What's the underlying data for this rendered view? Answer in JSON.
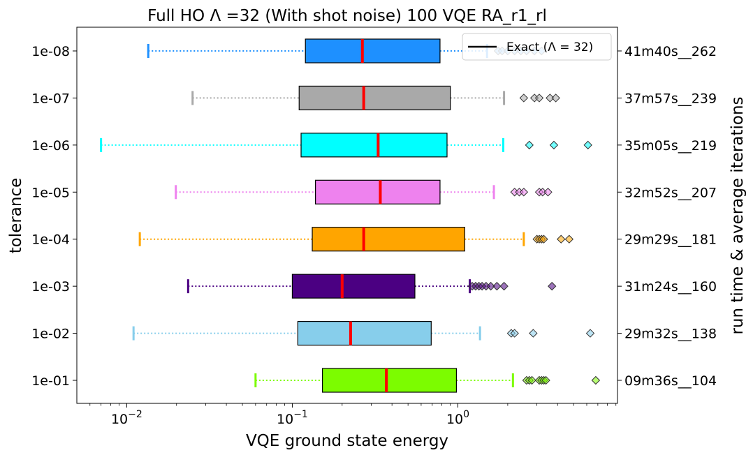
{
  "chart_data": {
    "type": "boxplot-horizontal",
    "title": "Full HO    Λ =32     (With shot noise)    100 VQE   RA_r1_rl",
    "xlabel": "VQE ground state energy",
    "ylabel": "tolerance",
    "ylabel_right": "run time & average iterations",
    "x_scale": "log",
    "xlim": [
      0.005,
      9.2
    ],
    "x_ticks": [
      {
        "value": 0.01,
        "base": "10",
        "exp": "−2"
      },
      {
        "value": 0.1,
        "base": "10",
        "exp": "−1"
      },
      {
        "value": 1,
        "base": "10",
        "exp": "0"
      }
    ],
    "legend": {
      "label": "Exact (Λ = 32)",
      "placement": "top-right",
      "color": "#000000"
    },
    "median_color": "#ff0000",
    "series": [
      {
        "category": "1e-08",
        "right_label": "41m40s__262",
        "color": "#1e90ff",
        "whisker_low": 0.0135,
        "q1": 0.12,
        "median": 0.265,
        "q3": 0.78,
        "whisker_high": 1.5,
        "fliers": [
          1.75,
          1.85,
          2.0,
          2.2,
          2.4,
          2.6,
          2.9,
          3.2
        ]
      },
      {
        "category": "1e-07",
        "right_label": "37m57s__239",
        "color": "#a9a9a9",
        "whisker_low": 0.025,
        "q1": 0.11,
        "median": 0.27,
        "q3": 0.9,
        "whisker_high": 1.9,
        "fliers": [
          2.5,
          2.9,
          3.1,
          3.6,
          3.9
        ]
      },
      {
        "category": "1e-06",
        "right_label": "35m05s__219",
        "color": "#00ffff",
        "whisker_low": 0.007,
        "q1": 0.113,
        "median": 0.33,
        "q3": 0.86,
        "whisker_high": 1.88,
        "fliers": [
          2.7,
          3.8,
          6.1
        ]
      },
      {
        "category": "1e-05",
        "right_label": "32m52s__207",
        "color": "#ee82ee",
        "whisker_low": 0.0198,
        "q1": 0.138,
        "median": 0.34,
        "q3": 0.78,
        "whisker_high": 1.65,
        "fliers": [
          2.2,
          2.35,
          2.5,
          3.1,
          3.25,
          3.5
        ]
      },
      {
        "category": "1e-04",
        "right_label": "29m29s__181",
        "color": "#ffa500",
        "whisker_low": 0.012,
        "q1": 0.132,
        "median": 0.27,
        "q3": 1.1,
        "whisker_high": 2.5,
        "fliers": [
          3.0,
          3.1,
          3.2,
          3.3,
          4.2,
          4.7
        ]
      },
      {
        "category": "1e-03",
        "right_label": "31m24s__160",
        "color": "#4b0082",
        "whisker_low": 0.0235,
        "q1": 0.1,
        "median": 0.2,
        "q3": 0.55,
        "whisker_high": 1.18,
        "fliers": [
          1.22,
          1.28,
          1.34,
          1.4,
          1.48,
          1.58,
          1.72,
          1.9,
          3.7
        ]
      },
      {
        "category": "1e-02",
        "right_label": "29m32s__138",
        "color": "#87ceeb",
        "whisker_low": 0.011,
        "q1": 0.108,
        "median": 0.225,
        "q3": 0.69,
        "whisker_high": 1.36,
        "fliers": [
          2.1,
          2.2,
          2.85,
          6.3
        ]
      },
      {
        "category": "1e-01",
        "right_label": "09m36s__104",
        "color": "#7cfc00",
        "whisker_low": 0.06,
        "q1": 0.152,
        "median": 0.37,
        "q3": 0.98,
        "whisker_high": 2.15,
        "fliers": [
          2.6,
          2.7,
          2.8,
          3.1,
          3.2,
          3.3,
          3.4,
          6.8
        ]
      }
    ]
  }
}
